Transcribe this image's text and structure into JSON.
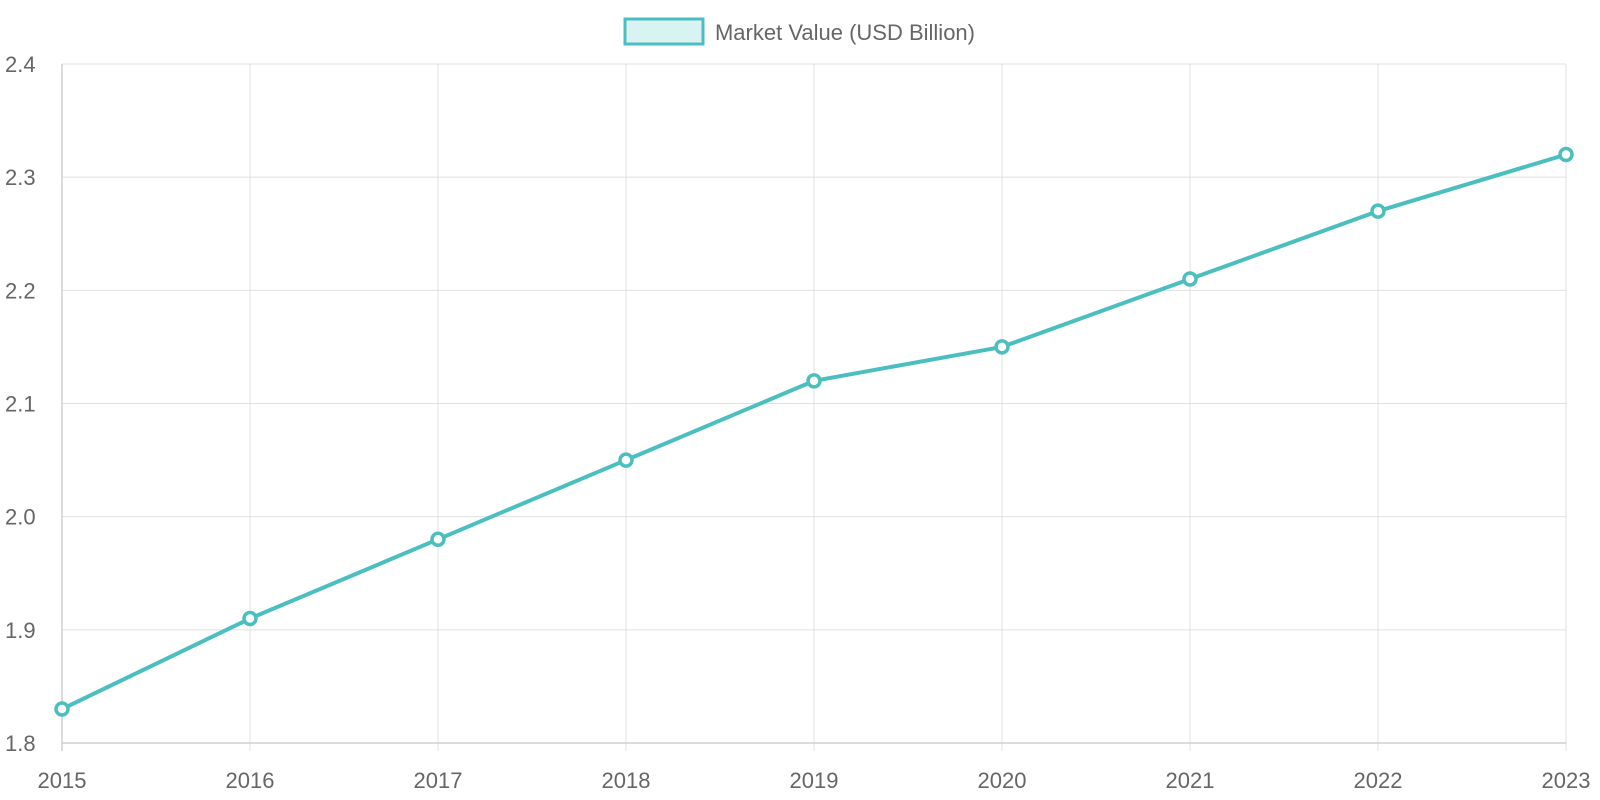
{
  "chart_data": {
    "type": "line",
    "title": "",
    "xlabel": "",
    "ylabel": "",
    "categories": [
      "2015",
      "2016",
      "2017",
      "2018",
      "2019",
      "2020",
      "2021",
      "2022",
      "2023"
    ],
    "series": [
      {
        "name": "Market Value (USD Billion)",
        "values": [
          1.83,
          1.91,
          1.98,
          2.05,
          2.12,
          2.15,
          2.21,
          2.27,
          2.32
        ],
        "color": "#4BBFBF",
        "fill_color": "#D9F3F2"
      }
    ],
    "ylim": [
      1.8,
      2.4
    ],
    "y_ticks": [
      "1.8",
      "1.9",
      "2.0",
      "2.1",
      "2.2",
      "2.3",
      "2.4"
    ],
    "grid": true,
    "legend_position": "top-center"
  }
}
